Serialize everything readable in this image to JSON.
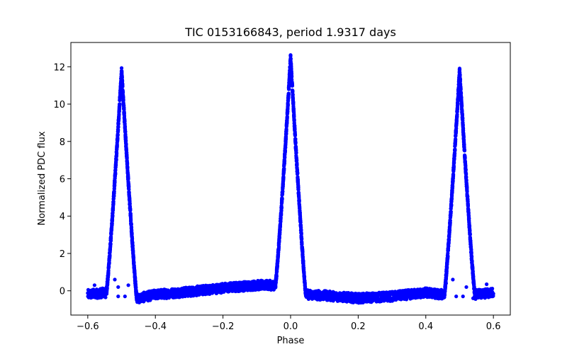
{
  "chart_data": {
    "type": "scatter",
    "title": "TIC 0153166843, period 1.9317 days",
    "xlabel": "Phase",
    "ylabel": "Normalized PDC flux",
    "xlim": [
      -0.65,
      0.65
    ],
    "ylim": [
      -1.3,
      13.3
    ],
    "xticks": [
      -0.6,
      -0.4,
      -0.2,
      0.0,
      0.2,
      0.4,
      0.6
    ],
    "xtick_labels": [
      "−0.6",
      "−0.4",
      "−0.2",
      "0.0",
      "0.2",
      "0.4",
      "0.6"
    ],
    "yticks": [
      0,
      2,
      4,
      6,
      8,
      10,
      12
    ],
    "ytick_labels": [
      "0",
      "2",
      "4",
      "6",
      "8",
      "10",
      "12"
    ],
    "grid": false,
    "marker_color": "#0000ff",
    "x_range_of_data": [
      -0.6,
      0.6
    ],
    "series": [
      {
        "peaks": [
          {
            "center": -0.5,
            "height": 11.8
          },
          {
            "center": 0.0,
            "height": 12.5
          },
          {
            "center": 0.5,
            "height": 11.8
          }
        ],
        "baseline_points": [
          [
            -0.6,
            -0.2
          ],
          [
            -0.55,
            -0.1
          ],
          [
            -0.45,
            -0.4
          ],
          [
            -0.4,
            -0.2
          ],
          [
            -0.3,
            -0.05
          ],
          [
            -0.2,
            0.15
          ],
          [
            -0.1,
            0.3
          ],
          [
            -0.05,
            0.3
          ],
          [
            0.05,
            -0.2
          ],
          [
            0.1,
            -0.25
          ],
          [
            0.2,
            -0.4
          ],
          [
            0.3,
            -0.3
          ],
          [
            0.4,
            -0.1
          ],
          [
            0.45,
            -0.2
          ],
          [
            0.55,
            -0.2
          ],
          [
            0.6,
            -0.1
          ]
        ],
        "outlier_points": [
          [
            -0.52,
            0.6
          ],
          [
            -0.51,
            0.2
          ],
          [
            -0.51,
            -0.3
          ],
          [
            -0.49,
            -0.3
          ],
          [
            -0.48,
            0.3
          ],
          [
            -0.46,
            0.4
          ],
          [
            0.46,
            0.4
          ],
          [
            0.48,
            0.6
          ],
          [
            0.49,
            -0.3
          ],
          [
            0.51,
            -0.3
          ],
          [
            0.52,
            0.2
          ],
          [
            0.54,
            -0.4
          ],
          [
            0.55,
            -0.3
          ],
          [
            0.58,
            0.35
          ],
          [
            -0.58,
            0.3
          ]
        ]
      }
    ]
  }
}
